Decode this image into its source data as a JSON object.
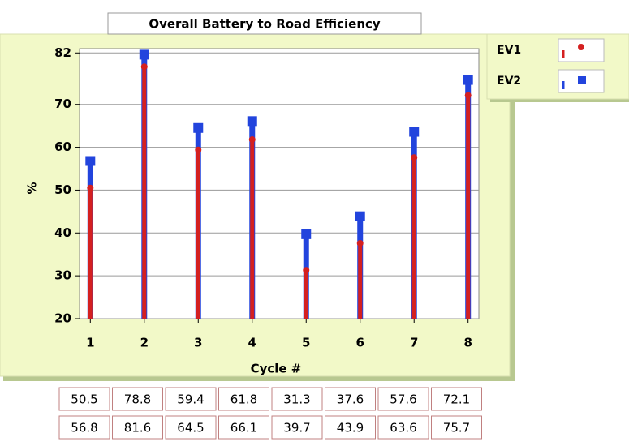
{
  "chart_data": {
    "type": "stem",
    "title": "Overall Battery to Road Efficiency",
    "x_label": "Cycle #",
    "y_label": "%",
    "x": [
      1,
      2,
      3,
      4,
      5,
      6,
      7,
      8
    ],
    "series": [
      {
        "name": "EV1",
        "color": "#d42020",
        "marker": "circle",
        "values": [
          50.5,
          78.8,
          59.4,
          61.8,
          31.3,
          37.6,
          57.6,
          72.1
        ]
      },
      {
        "name": "EV2",
        "color": "#2244dd",
        "marker": "square",
        "values": [
          56.8,
          81.6,
          64.5,
          66.1,
          39.7,
          43.9,
          63.6,
          75.7
        ]
      }
    ],
    "xlim": [
      0.8,
      8.2
    ],
    "xticks": [
      1,
      2,
      3,
      4,
      5,
      6,
      7,
      8
    ],
    "ylim": [
      20,
      83
    ],
    "yticks": [
      20,
      30,
      40,
      50,
      60,
      70,
      82
    ],
    "grid": true,
    "legend": "top-right"
  }
}
